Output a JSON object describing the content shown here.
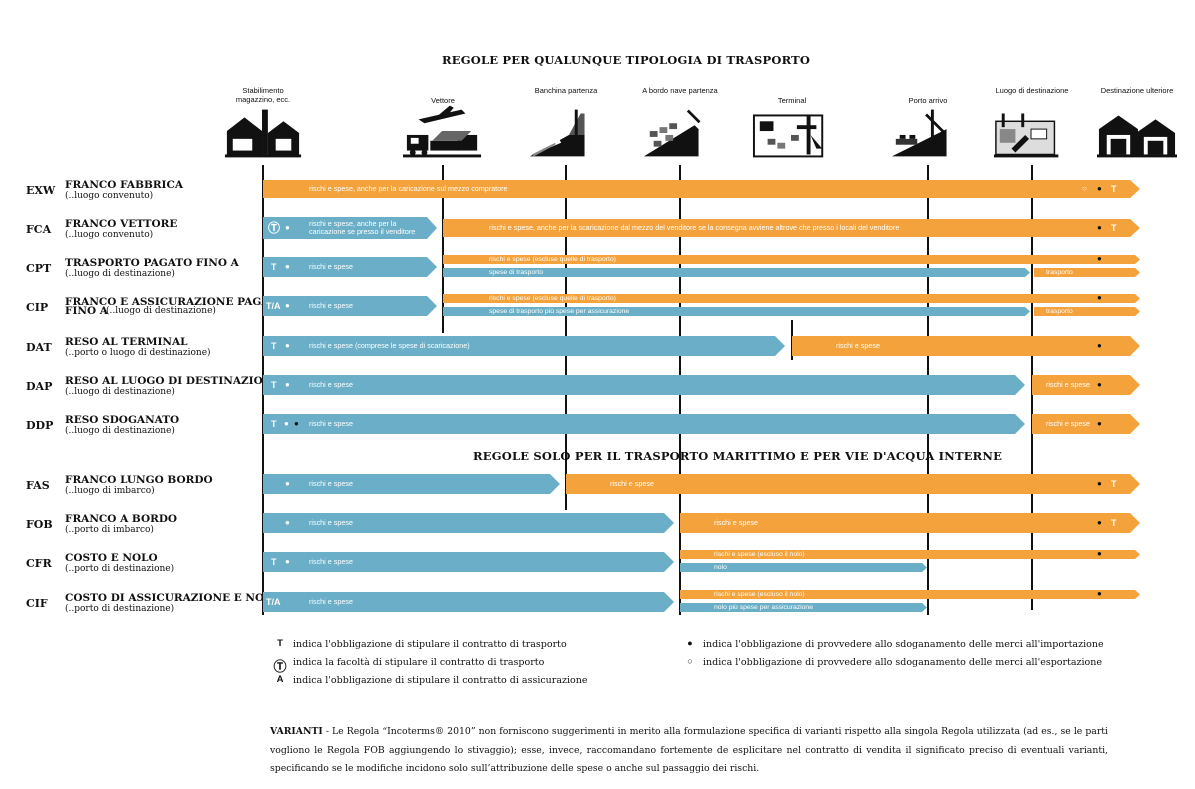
{
  "titles": {
    "all_modes": "REGOLE PER QUALUNQUE TIPOLOGIA DI TRASPORTO",
    "sea_only": "REGOLE SOLO PER IL TRASPORTO MARITTIMO E PER VIE D'ACQUA INTERNE"
  },
  "stops": [
    {
      "label": "Stabilimento magazzino, ecc.",
      "icon": "factory-icon"
    },
    {
      "label": "Vettore",
      "icon": "carrier-icon"
    },
    {
      "label": "Banchina partenza",
      "icon": "departure-quay-icon"
    },
    {
      "label": "A bordo nave partenza",
      "icon": "ship-loading-icon"
    },
    {
      "label": "Terminal",
      "icon": "terminal-icon"
    },
    {
      "label": "Porto arrivo",
      "icon": "arrival-port-icon"
    },
    {
      "label": "Luogo di destinazione",
      "icon": "destination-icon"
    },
    {
      "label": "Destinazione ulteriore",
      "icon": "warehouse-icon"
    }
  ],
  "rows": [
    {
      "code": "EXW",
      "name": "FRANCO FABBRICA",
      "sub": "(..luogo convenuto)",
      "bars": [
        {
          "c": "orange",
          "x1": 263,
          "x2": 1140,
          "h": 18,
          "y": 0,
          "arrow": true,
          "text": "rischi e spese, anche per la caricazione sul mezzo compratore",
          "tx": 46
        }
      ],
      "marks": [
        {
          "t": "○",
          "x": 1082,
          "c": "w"
        },
        {
          "t": "●",
          "x": 1097,
          "c": "d"
        },
        {
          "t": "T",
          "x": 1111,
          "c": "w"
        }
      ]
    },
    {
      "code": "FCA",
      "name": "FRANCO VETTORE",
      "sub": "(..luogo convenuto)",
      "bars": [
        {
          "c": "blue",
          "x1": 263,
          "x2": 437,
          "h": 22,
          "y": -2,
          "arrow": true,
          "text": "rischi e spese, anche per la\ncaricazione se presso il venditore",
          "tx": 46
        },
        {
          "c": "orange",
          "x1": 443,
          "x2": 1140,
          "h": 18,
          "y": 0,
          "arrow": true,
          "text": "rischi e spese, anche per la scaricazione dal mezzo del venditore se la consegna avviene altrove che presso i locali del venditore",
          "tx": 46
        }
      ],
      "marks": [
        {
          "t": "Ⓣ",
          "x": 268,
          "c": "w"
        },
        {
          "t": "●",
          "x": 285,
          "c": "w"
        },
        {
          "t": "●",
          "x": 1097,
          "c": "d"
        },
        {
          "t": "T",
          "x": 1111,
          "c": "w"
        }
      ]
    },
    {
      "code": "CPT",
      "name": "TRASPORTO PAGATO FINO A",
      "sub": "(..luogo di destinazione)",
      "bars": [
        {
          "c": "blue",
          "x1": 263,
          "x2": 437,
          "h": 20,
          "y": -1,
          "arrow": true,
          "text": "rischi e spese",
          "tx": 46
        },
        {
          "c": "orange",
          "x1": 443,
          "x2": 1140,
          "h": 9,
          "y": -3,
          "arrow": true,
          "text": "rischi e spese (escluse quelle di trasporto)",
          "tx": 46
        },
        {
          "c": "blue",
          "x1": 443,
          "x2": 1030,
          "h": 9,
          "y": 10,
          "arrow": true,
          "text": "spese di trasporto",
          "tx": 46
        },
        {
          "c": "orange",
          "x1": 1034,
          "x2": 1140,
          "h": 9,
          "y": 10,
          "arrow": true,
          "text": "trasporto",
          "tx": 12
        }
      ],
      "marks": [
        {
          "t": "T",
          "x": 271,
          "c": "w"
        },
        {
          "t": "●",
          "x": 285,
          "c": "w"
        },
        {
          "t": "●",
          "x": 1097,
          "c": "d"
        }
      ]
    },
    {
      "code": "CIP",
      "name": "FRANCO E ASSICURAZIONE PAGATI",
      "name2": "FINO A",
      "sub": "(..luogo di destinazione)",
      "bars": [
        {
          "c": "blue",
          "x1": 263,
          "x2": 437,
          "h": 20,
          "y": -1,
          "arrow": true,
          "text": "rischi e spese",
          "tx": 46
        },
        {
          "c": "orange",
          "x1": 443,
          "x2": 1140,
          "h": 9,
          "y": -3,
          "arrow": true,
          "text": "rischi e spese (escluse quelle di trasporto)",
          "tx": 46
        },
        {
          "c": "blue",
          "x1": 443,
          "x2": 1030,
          "h": 9,
          "y": 10,
          "arrow": true,
          "text": "spese di trasporto più spese per assicurazione",
          "tx": 46
        },
        {
          "c": "orange",
          "x1": 1034,
          "x2": 1140,
          "h": 9,
          "y": 10,
          "arrow": true,
          "text": "trasporto",
          "tx": 12
        }
      ],
      "marks": [
        {
          "t": "T/A",
          "x": 266,
          "c": "w"
        },
        {
          "t": "●",
          "x": 285,
          "c": "w"
        },
        {
          "t": "●",
          "x": 1097,
          "c": "d"
        }
      ]
    },
    {
      "code": "DAT",
      "name": "RESO AL TERMINAL",
      "sub": "(..porto o luogo di destinazione)",
      "bars": [
        {
          "c": "blue",
          "x1": 263,
          "x2": 785,
          "h": 20,
          "y": -1,
          "arrow": true,
          "text": "rischi e spese (comprese le spese di scaricazione)",
          "tx": 46
        },
        {
          "c": "orange",
          "x1": 792,
          "x2": 1140,
          "h": 20,
          "y": -1,
          "arrow": true,
          "text": "rischi e spese",
          "tx": 44
        }
      ],
      "marks": [
        {
          "t": "T",
          "x": 271,
          "c": "w"
        },
        {
          "t": "●",
          "x": 285,
          "c": "w"
        },
        {
          "t": "●",
          "x": 1097,
          "c": "d"
        }
      ]
    },
    {
      "code": "DAP",
      "name": "RESO AL LUOGO DI DESTINAZIONE",
      "sub": "(..luogo di destinazione)",
      "bars": [
        {
          "c": "blue",
          "x1": 263,
          "x2": 1025,
          "h": 20,
          "y": -1,
          "arrow": true,
          "text": "rischi e spese",
          "tx": 46
        },
        {
          "c": "orange",
          "x1": 1032,
          "x2": 1140,
          "h": 20,
          "y": -1,
          "arrow": true,
          "text": "rischi e spese",
          "tx": 14
        }
      ],
      "marks": [
        {
          "t": "T",
          "x": 271,
          "c": "w"
        },
        {
          "t": "●",
          "x": 285,
          "c": "w"
        },
        {
          "t": "●",
          "x": 1097,
          "c": "d"
        }
      ]
    },
    {
      "code": "DDP",
      "name": "RESO SDOGANATO",
      "sub": "(..luogo di destinazione)",
      "bars": [
        {
          "c": "blue",
          "x1": 263,
          "x2": 1025,
          "h": 20,
          "y": -1,
          "arrow": true,
          "text": "rischi e spese",
          "tx": 46
        },
        {
          "c": "orange",
          "x1": 1032,
          "x2": 1140,
          "h": 20,
          "y": -1,
          "arrow": true,
          "text": "rischi e spese",
          "tx": 14
        }
      ],
      "marks": [
        {
          "t": "T",
          "x": 271,
          "c": "w"
        },
        {
          "t": "●",
          "x": 284,
          "c": "w"
        },
        {
          "t": "●",
          "x": 294,
          "c": "d"
        },
        {
          "t": "●",
          "x": 1097,
          "c": "d"
        }
      ]
    },
    {
      "code": "FAS",
      "name": "FRANCO LUNGO BORDO",
      "sub": "(..luogo di imbarco)",
      "bars": [
        {
          "c": "blue",
          "x1": 263,
          "x2": 560,
          "h": 20,
          "y": -1,
          "arrow": true,
          "text": "rischi e spese",
          "tx": 46
        },
        {
          "c": "orange",
          "x1": 566,
          "x2": 1140,
          "h": 20,
          "y": -1,
          "arrow": true,
          "text": "rischi e spese",
          "tx": 44
        }
      ],
      "marks": [
        {
          "t": "●",
          "x": 285,
          "c": "w"
        },
        {
          "t": "●",
          "x": 1097,
          "c": "d"
        },
        {
          "t": "T",
          "x": 1111,
          "c": "w"
        }
      ]
    },
    {
      "code": "FOB",
      "name": "FRANCO A BORDO",
      "sub": "(..porto di imbarco)",
      "bars": [
        {
          "c": "blue",
          "x1": 263,
          "x2": 674,
          "h": 20,
          "y": -1,
          "arrow": true,
          "text": "rischi e spese",
          "tx": 46
        },
        {
          "c": "orange",
          "x1": 680,
          "x2": 1140,
          "h": 20,
          "y": -1,
          "arrow": true,
          "text": "rischi e spese",
          "tx": 34
        }
      ],
      "marks": [
        {
          "t": "●",
          "x": 285,
          "c": "w"
        },
        {
          "t": "●",
          "x": 1097,
          "c": "d"
        },
        {
          "t": "T",
          "x": 1111,
          "c": "w"
        }
      ]
    },
    {
      "code": "CFR",
      "name": "COSTO E NOLO",
      "sub": "(..porto di destinazione)",
      "bars": [
        {
          "c": "blue",
          "x1": 263,
          "x2": 674,
          "h": 20,
          "y": -1,
          "arrow": true,
          "text": "rischi e spese",
          "tx": 46
        },
        {
          "c": "orange",
          "x1": 680,
          "x2": 1140,
          "h": 9,
          "y": -3,
          "arrow": true,
          "text": "rischi e spese (escluso il nolo)",
          "tx": 34
        },
        {
          "c": "blue",
          "x1": 680,
          "x2": 927,
          "h": 9,
          "y": 10,
          "arrow": true,
          "text": "nolo",
          "tx": 34
        }
      ],
      "marks": [
        {
          "t": "T",
          "x": 271,
          "c": "w"
        },
        {
          "t": "●",
          "x": 285,
          "c": "w"
        },
        {
          "t": "●",
          "x": 1097,
          "c": "d"
        }
      ]
    },
    {
      "code": "CIF",
      "name": "COSTO DI ASSICURAZIONE E NOLO",
      "sub": "(..porto di destinazione)",
      "bars": [
        {
          "c": "blue",
          "x1": 263,
          "x2": 674,
          "h": 20,
          "y": -1,
          "arrow": true,
          "text": "rischi e spese",
          "tx": 46
        },
        {
          "c": "orange",
          "x1": 680,
          "x2": 1140,
          "h": 9,
          "y": -3,
          "arrow": true,
          "text": "rischi e spese (escluso il nolo)",
          "tx": 34
        },
        {
          "c": "blue",
          "x1": 680,
          "x2": 927,
          "h": 9,
          "y": 10,
          "arrow": true,
          "text": "nolo più spese per assicurazione",
          "tx": 34
        }
      ],
      "marks": [
        {
          "t": "T/A",
          "x": 266,
          "c": "w"
        },
        {
          "t": "●",
          "x": 1097,
          "c": "d"
        }
      ]
    }
  ],
  "legend": [
    {
      "sym": "T",
      "text": "indica l'obbligazione di stipulare il contratto di trasporto"
    },
    {
      "sym": "Ⓣ",
      "text": "indica la facoltà di stipulare il contratto di trasporto"
    },
    {
      "sym": "A",
      "text": "indica l'obbligazione di stipulare il contratto di assicurazione"
    },
    {
      "sym": "●",
      "text": "indica l'obbligazione di provvedere allo sdoganamento delle merci all'importazione"
    },
    {
      "sym": "○",
      "text": "indica l'obbligazione di provvedere allo sdoganamento delle merci all'esportazione"
    }
  ],
  "note": {
    "heading": "VARIANTI",
    "text": " - Le Regola “Incoterms® 2010” non forniscono suggerimenti in merito alla formulazione specifica di varianti rispetto alla singola Regola utilizzata (ad es., se le parti vogliono le Regola FOB aggiungendo lo stivaggio); esse, invece, raccomandano fortemente de esplicitare nel contratto di vendita il significato preciso di eventuali varianti, specificando se le modifiche incidono solo sull’attribuzione delle spese o anche sul passaggio dei rischi."
  },
  "colors": {
    "blue": "#6aafc7",
    "orange": "#f4a23b"
  }
}
